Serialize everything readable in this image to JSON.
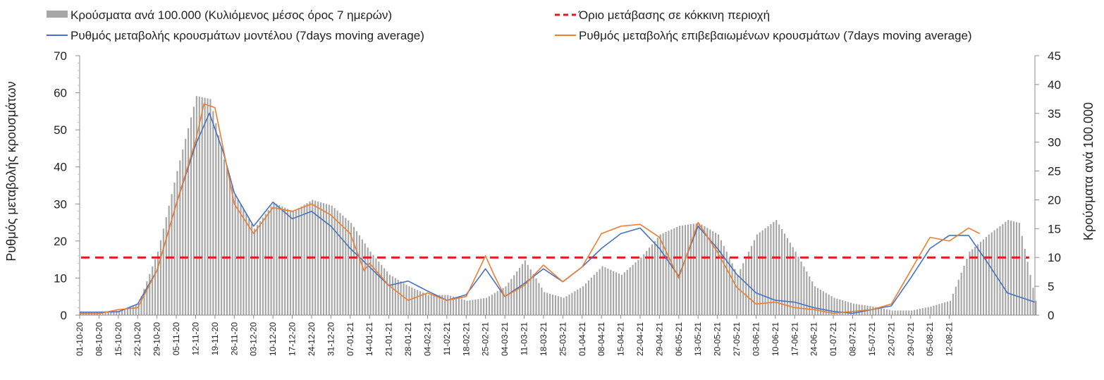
{
  "chart_data": {
    "type": "bar+line",
    "title": "",
    "ylabel_left": "Ρυθμός μεταβολής κρουσμάτων",
    "ylabel_right": "Κρούσματα ανά 100.000",
    "ylim_left": [
      0,
      70
    ],
    "yticks_left": [
      0,
      10,
      20,
      30,
      40,
      50,
      60,
      70
    ],
    "ylim_right": [
      0,
      45
    ],
    "yticks_right": [
      0,
      5,
      10,
      15,
      20,
      25,
      30,
      35,
      40,
      45
    ],
    "grid": false,
    "legend_position": "top",
    "x_start": "01-10-20",
    "x_end": "17-08-21",
    "x_tick_labels": [
      "01-10-20",
      "08-10-20",
      "15-10-20",
      "22-10-20",
      "29-10-20",
      "05-11-20",
      "12-11-20",
      "19-11-20",
      "26-11-20",
      "03-12-20",
      "10-12-20",
      "17-12-20",
      "24-12-20",
      "31-12-20",
      "07-01-21",
      "14-01-21",
      "21-01-21",
      "28-01-21",
      "04-02-21",
      "11-02-21",
      "18-02-21",
      "25-02-21",
      "04-03-21",
      "11-03-21",
      "18-03-21",
      "25-03-21",
      "01-04-21",
      "08-04-21",
      "15-04-21",
      "22-04-21",
      "29-04-21",
      "06-05-21",
      "13-05-21",
      "20-05-21",
      "27-05-21",
      "03-06-21",
      "10-06-21",
      "17-06-21",
      "24-06-21",
      "01-07-21",
      "08-07-21",
      "15-07-21",
      "22-07-21",
      "29-07-21",
      "05-08-21",
      "12-08-21"
    ],
    "series": [
      {
        "name": "Κρούσματα ανά 100.000 (Κυλιόμενος μέσος όρος 7 ημερών)",
        "type": "bar",
        "axis": "right",
        "color": "#a6a6a6",
        "points": [
          [
            0,
            0.6
          ],
          [
            7,
            0.6
          ],
          [
            14,
            0.8
          ],
          [
            21,
            2.0
          ],
          [
            28,
            11
          ],
          [
            35,
            25
          ],
          [
            42,
            38
          ],
          [
            47,
            37.5
          ],
          [
            52,
            27
          ],
          [
            56,
            21
          ],
          [
            63,
            15
          ],
          [
            70,
            19.5
          ],
          [
            77,
            18
          ],
          [
            84,
            20
          ],
          [
            91,
            19
          ],
          [
            98,
            16
          ],
          [
            105,
            11
          ],
          [
            112,
            7
          ],
          [
            119,
            5
          ],
          [
            126,
            3.5
          ],
          [
            133,
            3.5
          ],
          [
            140,
            2.5
          ],
          [
            147,
            3
          ],
          [
            154,
            5
          ],
          [
            161,
            9.5
          ],
          [
            168,
            4
          ],
          [
            175,
            3
          ],
          [
            182,
            5
          ],
          [
            189,
            8.5
          ],
          [
            196,
            7
          ],
          [
            203,
            10
          ],
          [
            210,
            14
          ],
          [
            217,
            15.5
          ],
          [
            224,
            16
          ],
          [
            231,
            14
          ],
          [
            238,
            7
          ],
          [
            245,
            14
          ],
          [
            252,
            16.5
          ],
          [
            259,
            11
          ],
          [
            266,
            5
          ],
          [
            273,
            3
          ],
          [
            280,
            2
          ],
          [
            287,
            1.5
          ],
          [
            294,
            0.8
          ],
          [
            301,
            0.8
          ],
          [
            308,
            1.5
          ],
          [
            315,
            2.5
          ],
          [
            322,
            11
          ],
          [
            329,
            14
          ],
          [
            336,
            16.5
          ],
          [
            340,
            16
          ],
          [
            346,
            2.5
          ]
        ]
      },
      {
        "name": "Όριο μετάβασης σε κόκκινη περιοχή",
        "type": "hline",
        "axis": "right",
        "color": "#e31a1c",
        "value": 10
      },
      {
        "name": "Ρυθμός μεταβολής κρουσμάτων μοντέλου (7days moving average)",
        "type": "line",
        "axis": "left",
        "color": "#4472c4",
        "points": [
          [
            0,
            0.8
          ],
          [
            7,
            0.8
          ],
          [
            14,
            0.9
          ],
          [
            21,
            3
          ],
          [
            28,
            12
          ],
          [
            35,
            30
          ],
          [
            42,
            46
          ],
          [
            47,
            54.5
          ],
          [
            52,
            44
          ],
          [
            56,
            33
          ],
          [
            63,
            24
          ],
          [
            70,
            30.5
          ],
          [
            77,
            26
          ],
          [
            84,
            28
          ],
          [
            91,
            24
          ],
          [
            98,
            18
          ],
          [
            105,
            13
          ],
          [
            112,
            8
          ],
          [
            119,
            9.2
          ],
          [
            126,
            6.5
          ],
          [
            133,
            4
          ],
          [
            140,
            5.5
          ],
          [
            147,
            12.5
          ],
          [
            154,
            5
          ],
          [
            161,
            8.5
          ],
          [
            168,
            12.5
          ],
          [
            175,
            9
          ],
          [
            182,
            13
          ],
          [
            189,
            18
          ],
          [
            196,
            22
          ],
          [
            203,
            23.5
          ],
          [
            210,
            18
          ],
          [
            217,
            10.5
          ],
          [
            224,
            24
          ],
          [
            231,
            18
          ],
          [
            238,
            11
          ],
          [
            245,
            6
          ],
          [
            252,
            4
          ],
          [
            259,
            3.5
          ],
          [
            266,
            2
          ],
          [
            273,
            1
          ],
          [
            280,
            0.5
          ],
          [
            287,
            1.5
          ],
          [
            294,
            2.5
          ],
          [
            301,
            10
          ],
          [
            308,
            18
          ],
          [
            315,
            21.5
          ],
          [
            322,
            21.5
          ],
          [
            329,
            14
          ],
          [
            336,
            6
          ],
          [
            346,
            3.5
          ]
        ]
      },
      {
        "name": "Ρυθμός μεταβολής επιβεβαιωμένων κρουσμάτων (7days moving average)",
        "type": "line",
        "axis": "left",
        "color": "#ed7d31",
        "points": [
          [
            0,
            0.4
          ],
          [
            7,
            0.4
          ],
          [
            14,
            1.5
          ],
          [
            21,
            2
          ],
          [
            28,
            12
          ],
          [
            35,
            30
          ],
          [
            42,
            47
          ],
          [
            45,
            57
          ],
          [
            49,
            56
          ],
          [
            52,
            45
          ],
          [
            56,
            30
          ],
          [
            63,
            22
          ],
          [
            70,
            29
          ],
          [
            77,
            28
          ],
          [
            84,
            30
          ],
          [
            91,
            27
          ],
          [
            98,
            22
          ],
          [
            103,
            12
          ],
          [
            105,
            14
          ],
          [
            112,
            8
          ],
          [
            119,
            4
          ],
          [
            126,
            6
          ],
          [
            133,
            4
          ],
          [
            140,
            5
          ],
          [
            147,
            16
          ],
          [
            150,
            11
          ],
          [
            154,
            5
          ],
          [
            161,
            8
          ],
          [
            168,
            13.5
          ],
          [
            175,
            9
          ],
          [
            182,
            13
          ],
          [
            189,
            22
          ],
          [
            196,
            24
          ],
          [
            203,
            24.5
          ],
          [
            210,
            21
          ],
          [
            217,
            10
          ],
          [
            224,
            25
          ],
          [
            231,
            17
          ],
          [
            238,
            7.5
          ],
          [
            245,
            3
          ],
          [
            252,
            3.5
          ],
          [
            259,
            2
          ],
          [
            266,
            1.5
          ],
          [
            273,
            0.5
          ],
          [
            280,
            1
          ],
          [
            287,
            1.5
          ],
          [
            294,
            3
          ],
          [
            301,
            12
          ],
          [
            308,
            21
          ],
          [
            315,
            20
          ],
          [
            322,
            23.5
          ],
          [
            326,
            22
          ]
        ]
      }
    ]
  }
}
